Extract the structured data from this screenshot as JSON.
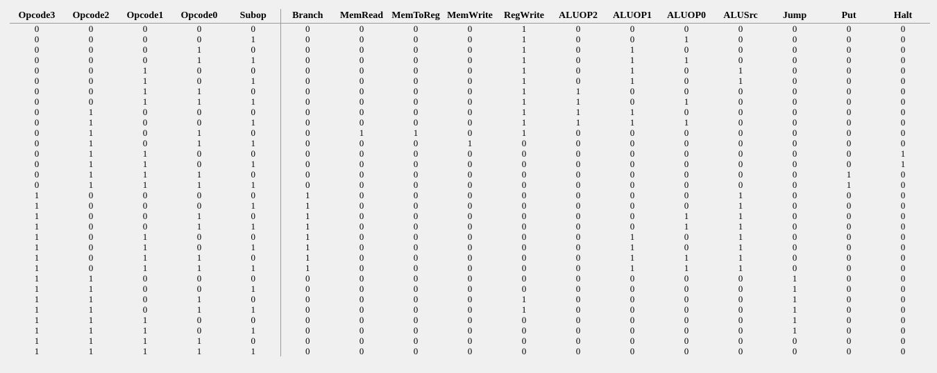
{
  "table": {
    "columns": [
      "Opcode3",
      "Opcode2",
      "Opcode1",
      "Opcode0",
      "Subop",
      "Branch",
      "MemRead",
      "MemToReg",
      "MemWrite",
      "RegWrite",
      "ALUOP2",
      "ALUOP1",
      "ALUOP0",
      "ALUSrc",
      "Jump",
      "Put",
      "Halt"
    ],
    "rows": [
      [
        "0",
        "0",
        "0",
        "0",
        "0",
        "0",
        "0",
        "0",
        "0",
        "1",
        "0",
        "0",
        "0",
        "0",
        "0",
        "0",
        "0"
      ],
      [
        "0",
        "0",
        "0",
        "0",
        "1",
        "0",
        "0",
        "0",
        "0",
        "1",
        "0",
        "0",
        "1",
        "0",
        "0",
        "0",
        "0"
      ],
      [
        "0",
        "0",
        "0",
        "1",
        "0",
        "0",
        "0",
        "0",
        "0",
        "1",
        "0",
        "1",
        "0",
        "0",
        "0",
        "0",
        "0"
      ],
      [
        "0",
        "0",
        "0",
        "1",
        "1",
        "0",
        "0",
        "0",
        "0",
        "1",
        "0",
        "1",
        "1",
        "0",
        "0",
        "0",
        "0"
      ],
      [
        "0",
        "0",
        "1",
        "0",
        "0",
        "0",
        "0",
        "0",
        "0",
        "1",
        "0",
        "1",
        "0",
        "1",
        "0",
        "0",
        "0"
      ],
      [
        "0",
        "0",
        "1",
        "0",
        "1",
        "0",
        "0",
        "0",
        "0",
        "1",
        "0",
        "1",
        "0",
        "1",
        "0",
        "0",
        "0"
      ],
      [
        "0",
        "0",
        "1",
        "1",
        "0",
        "0",
        "0",
        "0",
        "0",
        "1",
        "1",
        "0",
        "0",
        "0",
        "0",
        "0",
        "0"
      ],
      [
        "0",
        "0",
        "1",
        "1",
        "1",
        "0",
        "0",
        "0",
        "0",
        "1",
        "1",
        "0",
        "1",
        "0",
        "0",
        "0",
        "0"
      ],
      [
        "0",
        "1",
        "0",
        "0",
        "0",
        "0",
        "0",
        "0",
        "0",
        "1",
        "1",
        "1",
        "0",
        "0",
        "0",
        "0",
        "0"
      ],
      [
        "0",
        "1",
        "0",
        "0",
        "1",
        "0",
        "0",
        "0",
        "0",
        "1",
        "1",
        "1",
        "1",
        "0",
        "0",
        "0",
        "0"
      ],
      [
        "0",
        "1",
        "0",
        "1",
        "0",
        "0",
        "1",
        "1",
        "0",
        "1",
        "0",
        "0",
        "0",
        "0",
        "0",
        "0",
        "0"
      ],
      [
        "0",
        "1",
        "0",
        "1",
        "1",
        "0",
        "0",
        "0",
        "1",
        "0",
        "0",
        "0",
        "0",
        "0",
        "0",
        "0",
        "0"
      ],
      [
        "0",
        "1",
        "1",
        "0",
        "0",
        "0",
        "0",
        "0",
        "0",
        "0",
        "0",
        "0",
        "0",
        "0",
        "0",
        "0",
        "1"
      ],
      [
        "0",
        "1",
        "1",
        "0",
        "1",
        "0",
        "0",
        "0",
        "0",
        "0",
        "0",
        "0",
        "0",
        "0",
        "0",
        "0",
        "1"
      ],
      [
        "0",
        "1",
        "1",
        "1",
        "0",
        "0",
        "0",
        "0",
        "0",
        "0",
        "0",
        "0",
        "0",
        "0",
        "0",
        "1",
        "0"
      ],
      [
        "0",
        "1",
        "1",
        "1",
        "1",
        "0",
        "0",
        "0",
        "0",
        "0",
        "0",
        "0",
        "0",
        "0",
        "0",
        "1",
        "0"
      ],
      [
        "1",
        "0",
        "0",
        "0",
        "0",
        "1",
        "0",
        "0",
        "0",
        "0",
        "0",
        "0",
        "0",
        "1",
        "0",
        "0",
        "0"
      ],
      [
        "1",
        "0",
        "0",
        "0",
        "1",
        "1",
        "0",
        "0",
        "0",
        "0",
        "0",
        "0",
        "0",
        "1",
        "0",
        "0",
        "0"
      ],
      [
        "1",
        "0",
        "0",
        "1",
        "0",
        "1",
        "0",
        "0",
        "0",
        "0",
        "0",
        "0",
        "1",
        "1",
        "0",
        "0",
        "0"
      ],
      [
        "1",
        "0",
        "0",
        "1",
        "1",
        "1",
        "0",
        "0",
        "0",
        "0",
        "0",
        "0",
        "1",
        "1",
        "0",
        "0",
        "0"
      ],
      [
        "1",
        "0",
        "1",
        "0",
        "0",
        "1",
        "0",
        "0",
        "0",
        "0",
        "0",
        "1",
        "0",
        "1",
        "0",
        "0",
        "0"
      ],
      [
        "1",
        "0",
        "1",
        "0",
        "1",
        "1",
        "0",
        "0",
        "0",
        "0",
        "0",
        "1",
        "0",
        "1",
        "0",
        "0",
        "0"
      ],
      [
        "1",
        "0",
        "1",
        "1",
        "0",
        "1",
        "0",
        "0",
        "0",
        "0",
        "0",
        "1",
        "1",
        "1",
        "0",
        "0",
        "0"
      ],
      [
        "1",
        "0",
        "1",
        "1",
        "1",
        "1",
        "0",
        "0",
        "0",
        "0",
        "0",
        "1",
        "1",
        "1",
        "0",
        "0",
        "0"
      ],
      [
        "1",
        "1",
        "0",
        "0",
        "0",
        "0",
        "0",
        "0",
        "0",
        "0",
        "0",
        "0",
        "0",
        "0",
        "1",
        "0",
        "0"
      ],
      [
        "1",
        "1",
        "0",
        "0",
        "1",
        "0",
        "0",
        "0",
        "0",
        "0",
        "0",
        "0",
        "0",
        "0",
        "1",
        "0",
        "0"
      ],
      [
        "1",
        "1",
        "0",
        "1",
        "0",
        "0",
        "0",
        "0",
        "0",
        "1",
        "0",
        "0",
        "0",
        "0",
        "1",
        "0",
        "0"
      ],
      [
        "1",
        "1",
        "0",
        "1",
        "1",
        "0",
        "0",
        "0",
        "0",
        "1",
        "0",
        "0",
        "0",
        "0",
        "1",
        "0",
        "0"
      ],
      [
        "1",
        "1",
        "1",
        "0",
        "0",
        "0",
        "0",
        "0",
        "0",
        "0",
        "0",
        "0",
        "0",
        "0",
        "1",
        "0",
        "0"
      ],
      [
        "1",
        "1",
        "1",
        "0",
        "1",
        "0",
        "0",
        "0",
        "0",
        "0",
        "0",
        "0",
        "0",
        "0",
        "1",
        "0",
        "0"
      ],
      [
        "1",
        "1",
        "1",
        "1",
        "0",
        "0",
        "0",
        "0",
        "0",
        "0",
        "0",
        "0",
        "0",
        "0",
        "0",
        "0",
        "0"
      ],
      [
        "1",
        "1",
        "1",
        "1",
        "1",
        "0",
        "0",
        "0",
        "0",
        "0",
        "0",
        "0",
        "0",
        "0",
        "0",
        "0",
        "0"
      ]
    ]
  }
}
